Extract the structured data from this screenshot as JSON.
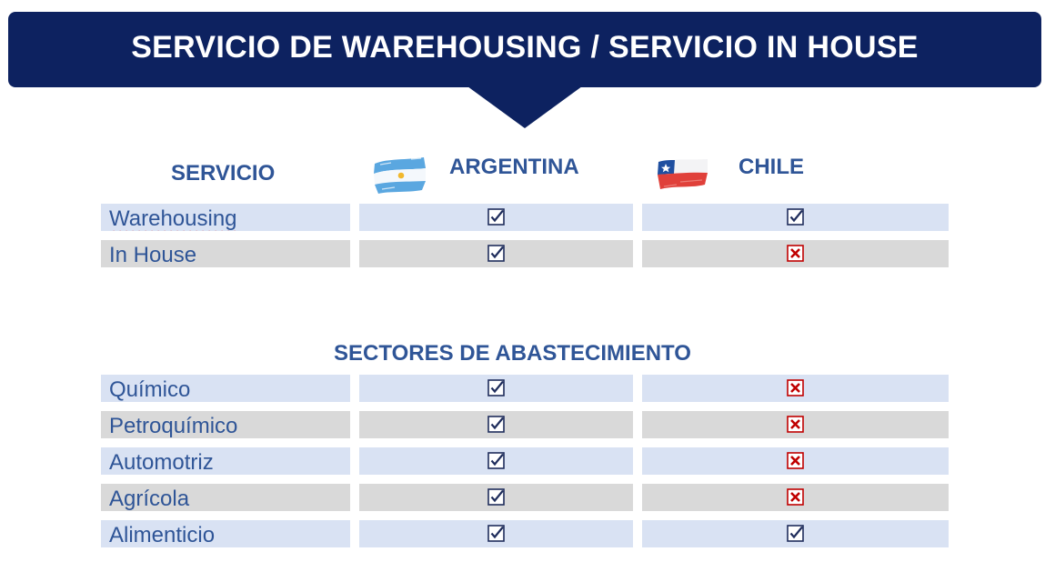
{
  "banner": {
    "title": "SERVICIO DE WAREHOUSING / SERVICIO IN HOUSE"
  },
  "columns": {
    "servicio": "SERVICIO",
    "argentina": {
      "label": "ARGENTINA",
      "flag_icon": "argentina-flag-icon"
    },
    "chile": {
      "label": "CHILE",
      "flag_icon": "chile-flag-icon"
    }
  },
  "servicios": [
    {
      "label": "Warehousing",
      "argentina": "check",
      "chile": "check"
    },
    {
      "label": "In House",
      "argentina": "check",
      "chile": "cross"
    }
  ],
  "sectores_title": "SECTORES DE ABASTECIMIENTO",
  "sectores": [
    {
      "label": "Químico",
      "argentina": "check",
      "chile": "cross"
    },
    {
      "label": "Petroquímico",
      "argentina": "check",
      "chile": "cross"
    },
    {
      "label": "Automotriz",
      "argentina": "check",
      "chile": "cross"
    },
    {
      "label": "Agrícola",
      "argentina": "check",
      "chile": "cross"
    },
    {
      "label": "Alimenticio",
      "argentina": "check",
      "chile": "check"
    }
  ],
  "colors": {
    "navy": "#0d2260",
    "text_blue": "#2f5597",
    "row_blue": "#d9e2f3",
    "row_gray": "#d9d9d9",
    "check": "#1f2d5c",
    "cross": "#c00000"
  }
}
